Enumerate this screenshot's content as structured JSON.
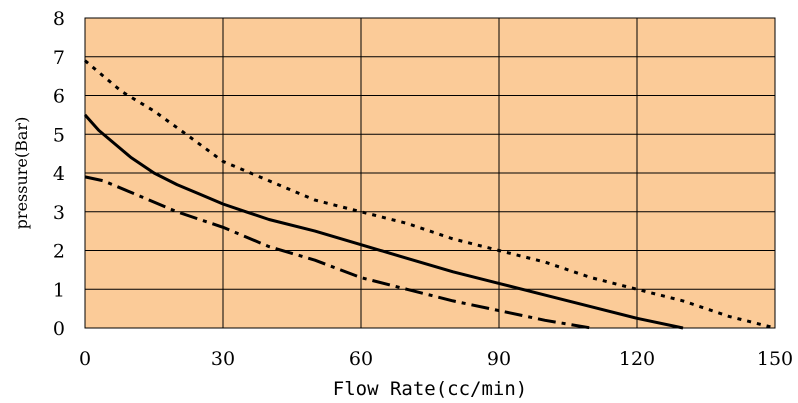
{
  "chart_data": {
    "type": "line",
    "title": "",
    "xlabel": "Flow Rate(cc/min)",
    "ylabel": "pressure(Bar)",
    "xlim": [
      0,
      150
    ],
    "ylim": [
      0,
      8
    ],
    "xticks": [
      "0",
      "30",
      "60",
      "90",
      "120",
      "150"
    ],
    "yticks": [
      "0",
      "1",
      "2",
      "3",
      "4",
      "5",
      "6",
      "7",
      "8"
    ],
    "grid": true,
    "legend": "none",
    "plot_background": "#FBCB98",
    "series": [
      {
        "style": "dotted",
        "color": "#000000",
        "x": [
          0,
          3,
          8,
          15,
          22,
          30,
          40,
          50,
          60,
          70,
          80,
          90,
          100,
          110,
          120,
          130,
          140,
          150
        ],
        "y": [
          6.9,
          6.6,
          6.1,
          5.6,
          5.0,
          4.3,
          3.8,
          3.3,
          3.0,
          2.7,
          2.3,
          2.0,
          1.7,
          1.3,
          1.0,
          0.7,
          0.3,
          0.0
        ]
      },
      {
        "style": "solid",
        "color": "#000000",
        "x": [
          0,
          3,
          7,
          10,
          15,
          20,
          25,
          30,
          35,
          40,
          50,
          60,
          70,
          80,
          90,
          100,
          110,
          120,
          130
        ],
        "y": [
          5.5,
          5.1,
          4.7,
          4.4,
          4.0,
          3.7,
          3.45,
          3.2,
          3.0,
          2.8,
          2.5,
          2.15,
          1.8,
          1.45,
          1.15,
          0.85,
          0.55,
          0.25,
          0.0
        ]
      },
      {
        "style": "dash-dot",
        "color": "#000000",
        "x": [
          0,
          4,
          10,
          20,
          30,
          40,
          50,
          60,
          70,
          80,
          90,
          100,
          110
        ],
        "y": [
          3.9,
          3.8,
          3.5,
          3.0,
          2.6,
          2.1,
          1.75,
          1.3,
          1.0,
          0.7,
          0.45,
          0.2,
          0.0
        ]
      }
    ]
  }
}
